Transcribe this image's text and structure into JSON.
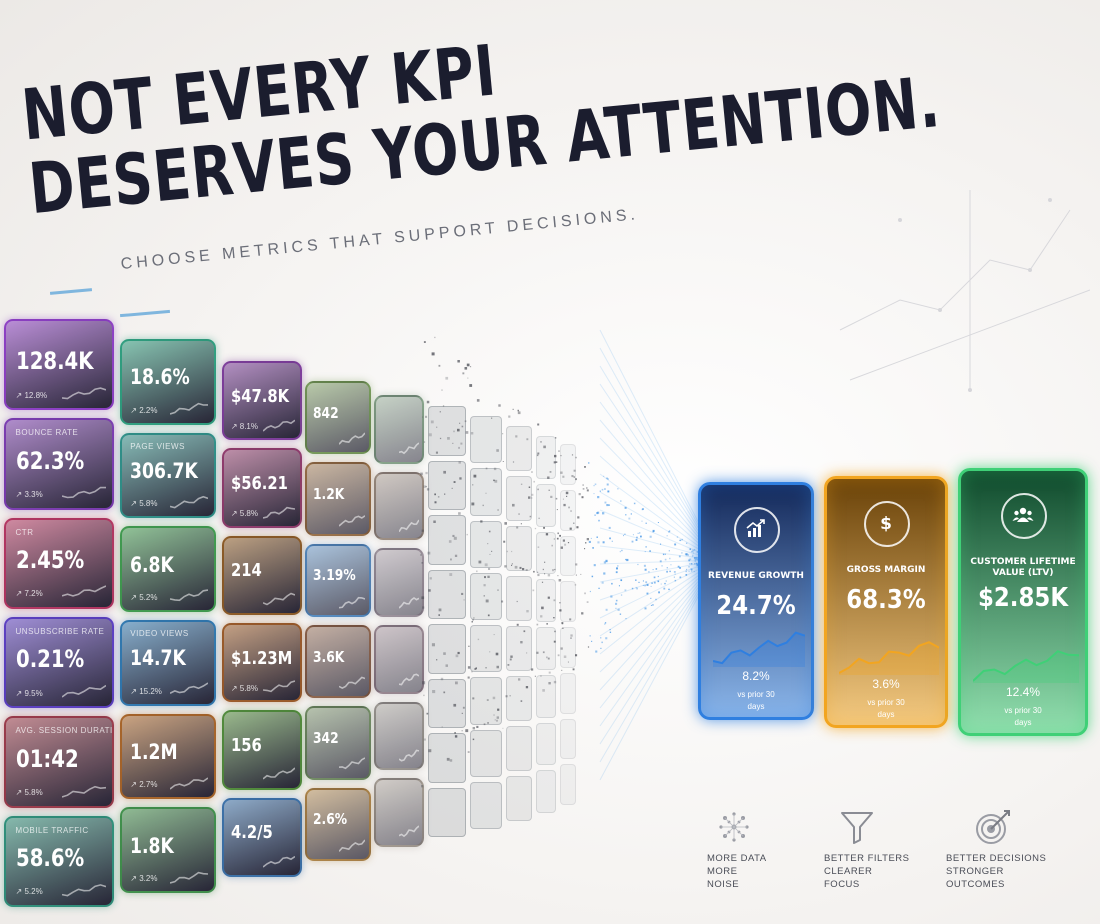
{
  "headline": {
    "line1": "NOT EVERY KPI",
    "line2": "DESERVES YOUR ATTENTION.",
    "subtitle": "CHOOSE METRICS THAT SUPPORT DECISIONS."
  },
  "wall_tiles": [
    {
      "label": "",
      "value": "128.4K",
      "change": "↗ 12.8%",
      "color": "#8c3ec4"
    },
    {
      "label": "",
      "value": "18.6%",
      "change": "↗ 2.2%",
      "color": "#2e9e7e"
    },
    {
      "label": "",
      "value": "$47.8K",
      "change": "↗ 8.1%",
      "color": "#7c3c9a"
    },
    {
      "label": "",
      "value": "842",
      "change": "",
      "color": "#5f8a3e"
    },
    {
      "label": "",
      "value": "",
      "change": "",
      "color": "#4f7a55"
    },
    {
      "label": "BOUNCE RATE",
      "value": "62.3%",
      "change": "↗ 3.3%",
      "color": "#7a3bb0"
    },
    {
      "label": "PAGE VIEWS",
      "value": "306.7K",
      "change": "↗ 5.8%",
      "color": "#2e8f88"
    },
    {
      "label": "",
      "value": "$56.21",
      "change": "↗ 5.8%",
      "color": "#8e3a6b"
    },
    {
      "label": "",
      "value": "1.2K",
      "change": "",
      "color": "#8a5a2a"
    },
    {
      "label": "",
      "value": "",
      "change": "",
      "color": "#6f5a48"
    },
    {
      "label": "CTR",
      "value": "2.45%",
      "change": "↗ 7.2%",
      "color": "#b33561"
    },
    {
      "label": "",
      "value": "6.8K",
      "change": "↗ 5.2%",
      "color": "#3f9a4e"
    },
    {
      "label": "",
      "value": "214",
      "change": "",
      "color": "#8b5a25"
    },
    {
      "label": "",
      "value": "3.19%",
      "change": "",
      "color": "#3a78b8"
    },
    {
      "label": "",
      "value": "",
      "change": "",
      "color": "#6f6070"
    },
    {
      "label": "UNSUBSCRIBE RATE",
      "value": "0.21%",
      "change": "↗ 9.5%",
      "color": "#5b3ec2"
    },
    {
      "label": "VIDEO VIEWS",
      "value": "14.7K",
      "change": "↗ 15.2%",
      "color": "#2f78b0"
    },
    {
      "label": "",
      "value": "$1.23M",
      "change": "↗ 5.8%",
      "color": "#9a5a28"
    },
    {
      "label": "",
      "value": "3.6K",
      "change": "",
      "color": "#7a4a2e"
    },
    {
      "label": "",
      "value": "",
      "change": "",
      "color": "#6a5060"
    },
    {
      "label": "AVG. SESSION DURATION",
      "value": "01:42",
      "change": "↗ 5.8%",
      "color": "#9a3a4a"
    },
    {
      "label": "",
      "value": "1.2M",
      "change": "↗ 2.7%",
      "color": "#a86428"
    },
    {
      "label": "",
      "value": "156",
      "change": "",
      "color": "#4f8a3a"
    },
    {
      "label": "",
      "value": "342",
      "change": "",
      "color": "#5a7a4a"
    },
    {
      "label": "",
      "value": "",
      "change": "",
      "color": "#6f6a62"
    },
    {
      "label": "MOBILE TRAFFIC",
      "value": "58.6%",
      "change": "↗ 5.2%",
      "color": "#2e8f7a"
    },
    {
      "label": "",
      "value": "1.8K",
      "change": "↗ 3.2%",
      "color": "#3f8f4a"
    },
    {
      "label": "",
      "value": "4.2/5",
      "change": "",
      "color": "#3a70a8"
    },
    {
      "label": "",
      "value": "2.6%",
      "change": "",
      "color": "#a0702a"
    },
    {
      "label": "",
      "value": "",
      "change": "",
      "color": "#7a6f62"
    }
  ],
  "kpi_cards": [
    {
      "label": "REVENUE GROWTH",
      "value": "24.7%",
      "change": "8.2%",
      "vs": "vs prior 30",
      "days": "days",
      "icon": "chart-up-icon",
      "color": "#2f7fe0",
      "bg": "#14295a"
    },
    {
      "label": "GROSS MARGIN",
      "value": "68.3%",
      "change": "3.6%",
      "vs": "vs prior 30",
      "days": "days",
      "icon": "dollar-icon",
      "color": "#f2a520",
      "bg": "#6a4208"
    },
    {
      "label": "CUSTOMER LIFETIME VALUE (LTV)",
      "value": "$2.85K",
      "change": "12.4%",
      "vs": "vs prior 30",
      "days": "days",
      "icon": "users-icon",
      "color": "#3fd077",
      "bg": "#0f4a2c"
    }
  ],
  "features": [
    {
      "icon": "network-icon",
      "lines": [
        "MORE DATA",
        "MORE",
        "NOISE"
      ]
    },
    {
      "icon": "filter-icon",
      "lines": [
        "BETTER FILTERS",
        "CLEARER",
        "FOCUS"
      ]
    },
    {
      "icon": "target-icon",
      "lines": [
        "BETTER DECISIONS",
        "STRONGER",
        "OUTCOMES"
      ]
    }
  ]
}
